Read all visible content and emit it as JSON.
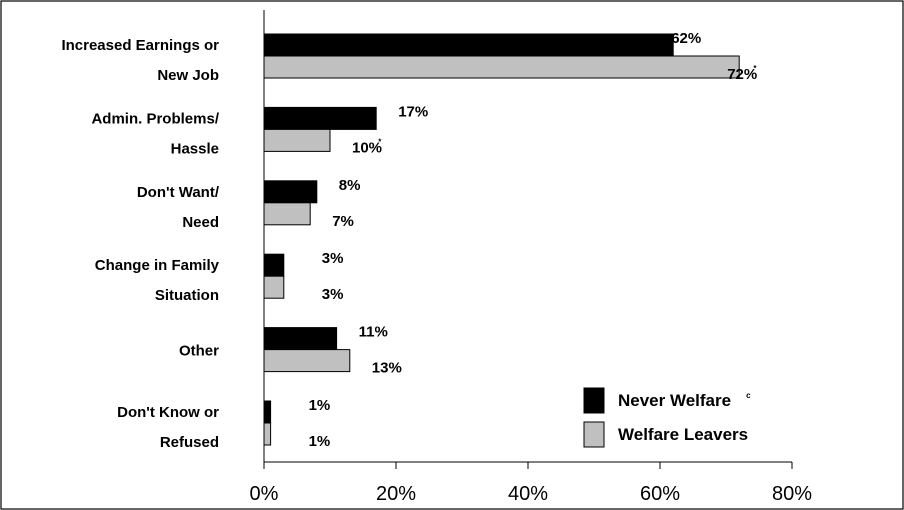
{
  "chart_data": {
    "type": "bar",
    "orientation": "horizontal",
    "categories": [
      [
        "Increased Earnings or",
        "New Job"
      ],
      [
        "Admin. Problems/",
        "Hassle"
      ],
      [
        "Don't Want/",
        "Need"
      ],
      [
        "Change in Family",
        "Situation"
      ],
      [
        "Other"
      ],
      [
        "Don't Know or",
        "Refused"
      ]
    ],
    "series": [
      {
        "name": "Never Welfare",
        "name_superscript": "c",
        "color": "#000000",
        "values": [
          62,
          17,
          8,
          3,
          11,
          1
        ],
        "labels": [
          "62%",
          "17%",
          "8%",
          "3%",
          "11%",
          "1%"
        ],
        "label_marks": [
          "",
          "",
          "",
          "",
          "",
          ""
        ]
      },
      {
        "name": "Welfare Leavers",
        "name_superscript": "",
        "color": "#c0c0c0",
        "values": [
          72,
          10,
          7,
          3,
          13,
          1
        ],
        "labels": [
          "72%",
          "10%",
          "7%",
          "3%",
          "13%",
          "1%"
        ],
        "label_marks": [
          "*",
          "*",
          "",
          "",
          "",
          ""
        ]
      }
    ],
    "xlim": [
      0,
      80
    ],
    "xticks": [
      0,
      20,
      40,
      60,
      80
    ],
    "xtick_labels": [
      "0%",
      "20%",
      "40%",
      "60%",
      "80%"
    ],
    "grid": false,
    "legend_position": "bottom-right",
    "title": "",
    "xlabel": "",
    "ylabel": ""
  }
}
